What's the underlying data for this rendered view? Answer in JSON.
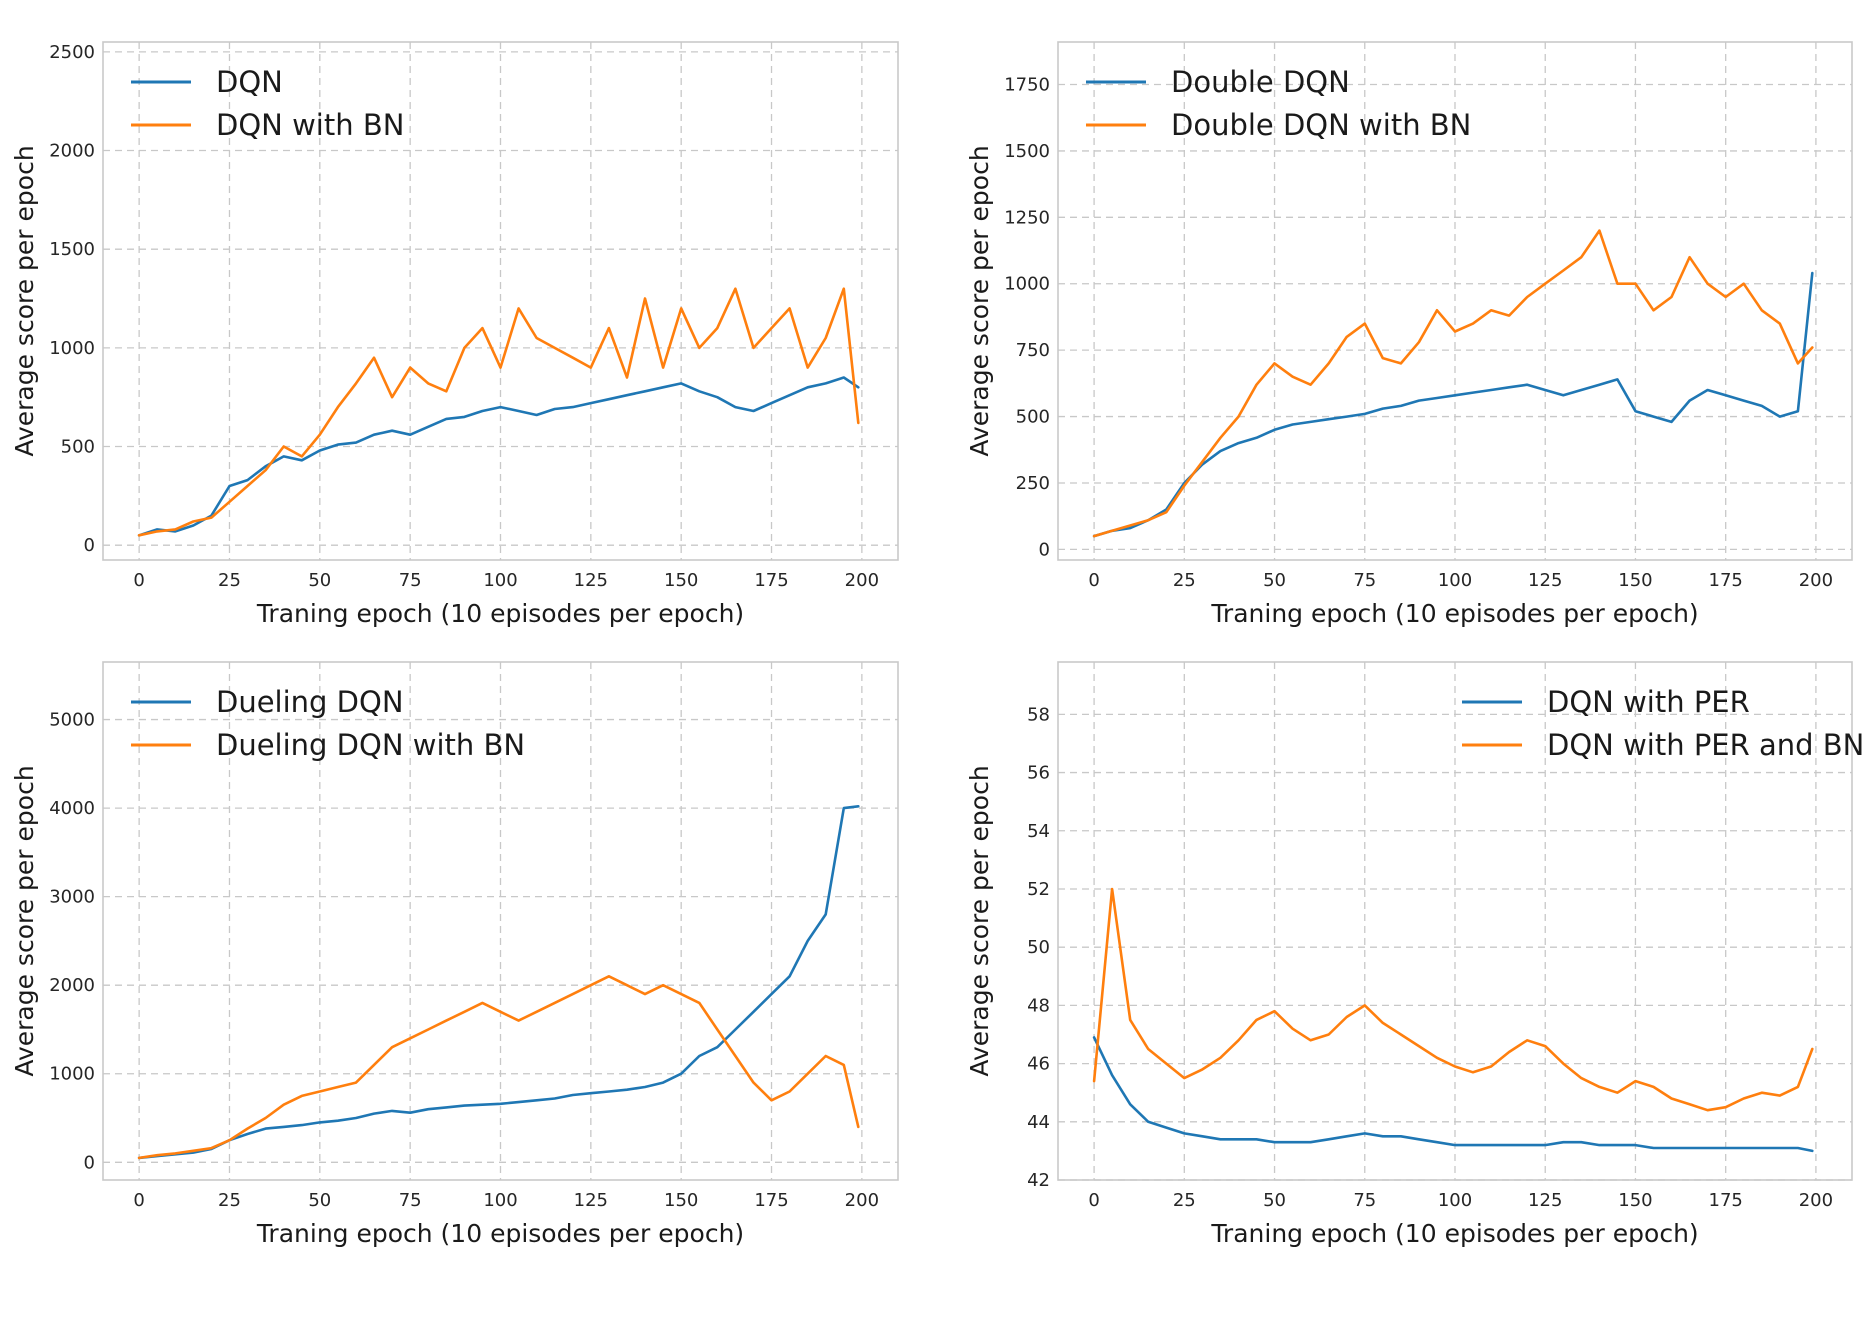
{
  "colors": {
    "blue": "#1f77b4",
    "orange": "#ff7f0e"
  },
  "chart_data": [
    {
      "type": "line",
      "xlabel": "Traning epoch (10 episodes per epoch)",
      "ylabel": "Average score per epoch",
      "xlim": [
        -10,
        210
      ],
      "ylim": [
        -75,
        2550
      ],
      "xticks": [
        0,
        25,
        50,
        75,
        100,
        125,
        150,
        175,
        200
      ],
      "yticks": [
        0,
        500,
        1000,
        1500,
        2000,
        2500
      ],
      "legend_position": "top-left",
      "series": [
        {
          "name": "DQN",
          "color": "#1f77b4",
          "x": [
            0,
            5,
            10,
            15,
            20,
            25,
            30,
            35,
            40,
            45,
            50,
            55,
            60,
            65,
            70,
            75,
            80,
            85,
            90,
            95,
            100,
            105,
            110,
            115,
            120,
            125,
            130,
            135,
            140,
            145,
            150,
            155,
            160,
            165,
            170,
            175,
            180,
            185,
            190,
            195,
            199
          ],
          "values": [
            50,
            80,
            70,
            100,
            150,
            300,
            330,
            400,
            450,
            430,
            480,
            510,
            520,
            560,
            580,
            560,
            600,
            640,
            650,
            680,
            700,
            680,
            660,
            690,
            700,
            720,
            740,
            760,
            780,
            800,
            820,
            780,
            750,
            700,
            680,
            720,
            760,
            800,
            820,
            850,
            800
          ]
        },
        {
          "name": "DQN with BN",
          "color": "#ff7f0e",
          "x": [
            0,
            5,
            10,
            15,
            20,
            25,
            30,
            35,
            40,
            45,
            50,
            55,
            60,
            65,
            70,
            75,
            80,
            85,
            90,
            95,
            100,
            105,
            110,
            115,
            120,
            125,
            130,
            135,
            140,
            145,
            150,
            155,
            160,
            165,
            170,
            175,
            180,
            185,
            190,
            195,
            199
          ],
          "values": [
            50,
            70,
            80,
            120,
            140,
            220,
            300,
            380,
            500,
            450,
            560,
            700,
            820,
            950,
            750,
            900,
            820,
            780,
            1000,
            1100,
            900,
            1200,
            1050,
            1000,
            950,
            900,
            1100,
            850,
            1250,
            900,
            1200,
            1000,
            1100,
            1300,
            1000,
            1100,
            1200,
            900,
            1050,
            1300,
            620
          ]
        }
      ]
    },
    {
      "type": "line",
      "xlabel": "Traning epoch (10 episodes per epoch)",
      "ylabel": "Average score per epoch",
      "xlim": [
        -10,
        210
      ],
      "ylim": [
        -40,
        1910
      ],
      "xticks": [
        0,
        25,
        50,
        75,
        100,
        125,
        150,
        175,
        200
      ],
      "yticks": [
        0,
        250,
        500,
        750,
        1000,
        1250,
        1500,
        1750
      ],
      "legend_position": "top-left",
      "series": [
        {
          "name": "Double DQN",
          "color": "#1f77b4",
          "x": [
            0,
            5,
            10,
            15,
            20,
            25,
            30,
            35,
            40,
            45,
            50,
            55,
            60,
            65,
            70,
            75,
            80,
            85,
            90,
            95,
            100,
            105,
            110,
            115,
            120,
            125,
            130,
            135,
            140,
            145,
            150,
            155,
            160,
            165,
            170,
            175,
            180,
            185,
            190,
            195,
            199
          ],
          "values": [
            50,
            70,
            80,
            110,
            150,
            250,
            320,
            370,
            400,
            420,
            450,
            470,
            480,
            490,
            500,
            510,
            530,
            540,
            560,
            570,
            580,
            590,
            600,
            610,
            620,
            600,
            580,
            600,
            620,
            640,
            520,
            500,
            480,
            560,
            600,
            580,
            560,
            540,
            500,
            520,
            1040
          ]
        },
        {
          "name": "Double DQN with BN",
          "color": "#ff7f0e",
          "x": [
            0,
            5,
            10,
            15,
            20,
            25,
            30,
            35,
            40,
            45,
            50,
            55,
            60,
            65,
            70,
            75,
            80,
            85,
            90,
            95,
            100,
            105,
            110,
            115,
            120,
            125,
            130,
            135,
            140,
            145,
            150,
            155,
            160,
            165,
            170,
            175,
            180,
            185,
            190,
            195,
            199
          ],
          "values": [
            50,
            70,
            90,
            110,
            140,
            240,
            330,
            420,
            500,
            620,
            700,
            650,
            620,
            700,
            800,
            850,
            720,
            700,
            780,
            900,
            820,
            850,
            900,
            880,
            950,
            1000,
            1050,
            1100,
            1200,
            1000,
            1000,
            900,
            950,
            1100,
            1000,
            950,
            1000,
            900,
            850,
            700,
            760
          ]
        }
      ]
    },
    {
      "type": "line",
      "xlabel": "Traning epoch (10 episodes per epoch)",
      "ylabel": "Average score per epoch",
      "xlim": [
        -10,
        210
      ],
      "ylim": [
        -200,
        5650
      ],
      "xticks": [
        0,
        25,
        50,
        75,
        100,
        125,
        150,
        175,
        200
      ],
      "yticks": [
        0,
        1000,
        2000,
        3000,
        4000,
        5000
      ],
      "legend_position": "top-left",
      "series": [
        {
          "name": "Dueling DQN",
          "color": "#1f77b4",
          "x": [
            0,
            5,
            10,
            15,
            20,
            25,
            30,
            35,
            40,
            45,
            50,
            55,
            60,
            65,
            70,
            75,
            80,
            85,
            90,
            95,
            100,
            105,
            110,
            115,
            120,
            125,
            130,
            135,
            140,
            145,
            150,
            155,
            160,
            165,
            170,
            175,
            180,
            185,
            190,
            195,
            199
          ],
          "values": [
            50,
            70,
            90,
            110,
            150,
            250,
            320,
            380,
            400,
            420,
            450,
            470,
            500,
            550,
            580,
            560,
            600,
            620,
            640,
            650,
            660,
            680,
            700,
            720,
            760,
            780,
            800,
            820,
            850,
            900,
            1000,
            1200,
            1300,
            1500,
            1700,
            1900,
            2100,
            2500,
            2800,
            4000,
            4020
          ]
        },
        {
          "name": "Dueling DQN with BN",
          "color": "#ff7f0e",
          "x": [
            0,
            5,
            10,
            15,
            20,
            25,
            30,
            35,
            40,
            45,
            50,
            55,
            60,
            65,
            70,
            75,
            80,
            85,
            90,
            95,
            100,
            105,
            110,
            115,
            120,
            125,
            130,
            135,
            140,
            145,
            150,
            155,
            160,
            165,
            170,
            175,
            180,
            185,
            190,
            195,
            199
          ],
          "values": [
            50,
            80,
            100,
            130,
            160,
            250,
            380,
            500,
            650,
            750,
            800,
            850,
            900,
            1100,
            1300,
            1400,
            1500,
            1600,
            1700,
            1800,
            1700,
            1600,
            1700,
            1800,
            1900,
            2000,
            2100,
            2000,
            1900,
            2000,
            1900,
            1800,
            1500,
            1200,
            900,
            700,
            800,
            1000,
            1200,
            1100,
            400
          ]
        }
      ]
    },
    {
      "type": "line",
      "xlabel": "Traning epoch (10 episodes per epoch)",
      "ylabel": "Average score per epoch",
      "xlim": [
        -10,
        210
      ],
      "ylim": [
        42,
        59.8
      ],
      "xticks": [
        0,
        25,
        50,
        75,
        100,
        125,
        150,
        175,
        200
      ],
      "yticks": [
        42,
        44,
        46,
        48,
        50,
        52,
        54,
        56,
        58
      ],
      "legend_position": "top-right",
      "series": [
        {
          "name": "DQN with PER",
          "color": "#1f77b4",
          "x": [
            0,
            5,
            10,
            15,
            20,
            25,
            30,
            35,
            40,
            45,
            50,
            55,
            60,
            65,
            70,
            75,
            80,
            85,
            90,
            95,
            100,
            105,
            110,
            115,
            120,
            125,
            130,
            135,
            140,
            145,
            150,
            155,
            160,
            165,
            170,
            175,
            180,
            185,
            190,
            195,
            199
          ],
          "values": [
            46.9,
            45.6,
            44.6,
            44.0,
            43.8,
            43.6,
            43.5,
            43.4,
            43.4,
            43.4,
            43.3,
            43.3,
            43.3,
            43.4,
            43.5,
            43.6,
            43.5,
            43.5,
            43.4,
            43.3,
            43.2,
            43.2,
            43.2,
            43.2,
            43.2,
            43.2,
            43.3,
            43.3,
            43.2,
            43.2,
            43.2,
            43.1,
            43.1,
            43.1,
            43.1,
            43.1,
            43.1,
            43.1,
            43.1,
            43.1,
            43.0
          ]
        },
        {
          "name": "DQN with PER and BN",
          "color": "#ff7f0e",
          "x": [
            0,
            5,
            10,
            15,
            20,
            25,
            30,
            35,
            40,
            45,
            50,
            55,
            60,
            65,
            70,
            75,
            80,
            85,
            90,
            95,
            100,
            105,
            110,
            115,
            120,
            125,
            130,
            135,
            140,
            145,
            150,
            155,
            160,
            165,
            170,
            175,
            180,
            185,
            190,
            195,
            199
          ],
          "values": [
            45.4,
            52.0,
            47.5,
            46.5,
            46.0,
            45.5,
            45.8,
            46.2,
            46.8,
            47.5,
            47.8,
            47.2,
            46.8,
            47.0,
            47.6,
            48.0,
            47.4,
            47.0,
            46.6,
            46.2,
            45.9,
            45.7,
            45.9,
            46.4,
            46.8,
            46.6,
            46.0,
            45.5,
            45.2,
            45.0,
            45.4,
            45.2,
            44.8,
            44.6,
            44.4,
            44.5,
            44.8,
            45.0,
            44.9,
            45.2,
            46.5
          ]
        }
      ]
    }
  ]
}
